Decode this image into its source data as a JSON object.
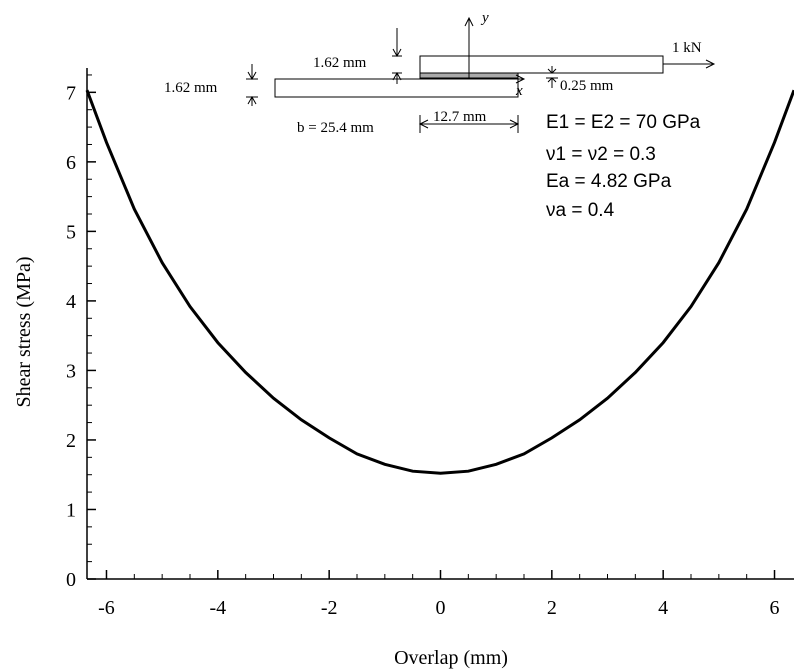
{
  "chart_data": {
    "type": "line",
    "xlabel": "Overlap (mm)",
    "ylabel": "Shear stress (MPa)",
    "xlim": [
      -6.35,
      6.35
    ],
    "ylim": [
      0,
      7.35
    ],
    "x_ticks": [
      -6,
      -4,
      -2,
      0,
      2,
      4,
      6
    ],
    "x_tick_labels": [
      "-6",
      "-4",
      "-2",
      "0",
      "2",
      "4",
      "6"
    ],
    "y_ticks": [
      0,
      1,
      2,
      3,
      4,
      5,
      6,
      7
    ],
    "y_tick_labels": [
      "0",
      "1",
      "2",
      "3",
      "4",
      "5",
      "6",
      "7"
    ],
    "minor_tick_step_x": 0.5,
    "minor_tick_step_y": 0.25,
    "grid": false,
    "line_color": "#000000",
    "series": [
      {
        "x": [
          -6.35,
          -6.0,
          -5.5,
          -5.0,
          -4.5,
          -4.0,
          -3.5,
          -3.0,
          -2.5,
          -2.0,
          -1.5,
          -1.0,
          -0.5,
          0.0,
          0.5,
          1.0,
          1.5,
          2.0,
          2.5,
          3.0,
          3.5,
          4.0,
          4.5,
          5.0,
          5.5,
          6.0,
          6.35
        ],
        "y": [
          7.03,
          6.28,
          5.32,
          4.55,
          3.92,
          3.4,
          2.97,
          2.6,
          2.29,
          2.03,
          1.8,
          1.65,
          1.55,
          1.52,
          1.55,
          1.65,
          1.8,
          2.03,
          2.29,
          2.6,
          2.97,
          3.4,
          3.92,
          4.55,
          5.32,
          6.28,
          7.03
        ]
      }
    ],
    "annotations": {
      "inset": {
        "dim_top_thickness": "1.62 mm",
        "dim_bottom_thickness": "1.62 mm",
        "dim_adhesive": "0.25 mm",
        "dim_width": "b = 25.4 mm",
        "dim_half_overlap": "12.7 mm",
        "load": "1 kN",
        "axis_y": "y",
        "axis_x": "x"
      },
      "properties": [
        "E1 = E2 = 70 GPa",
        "ν1 = ν2 = 0.3",
        "Ea = 4.82 GPa",
        "νa = 0.4"
      ]
    }
  }
}
